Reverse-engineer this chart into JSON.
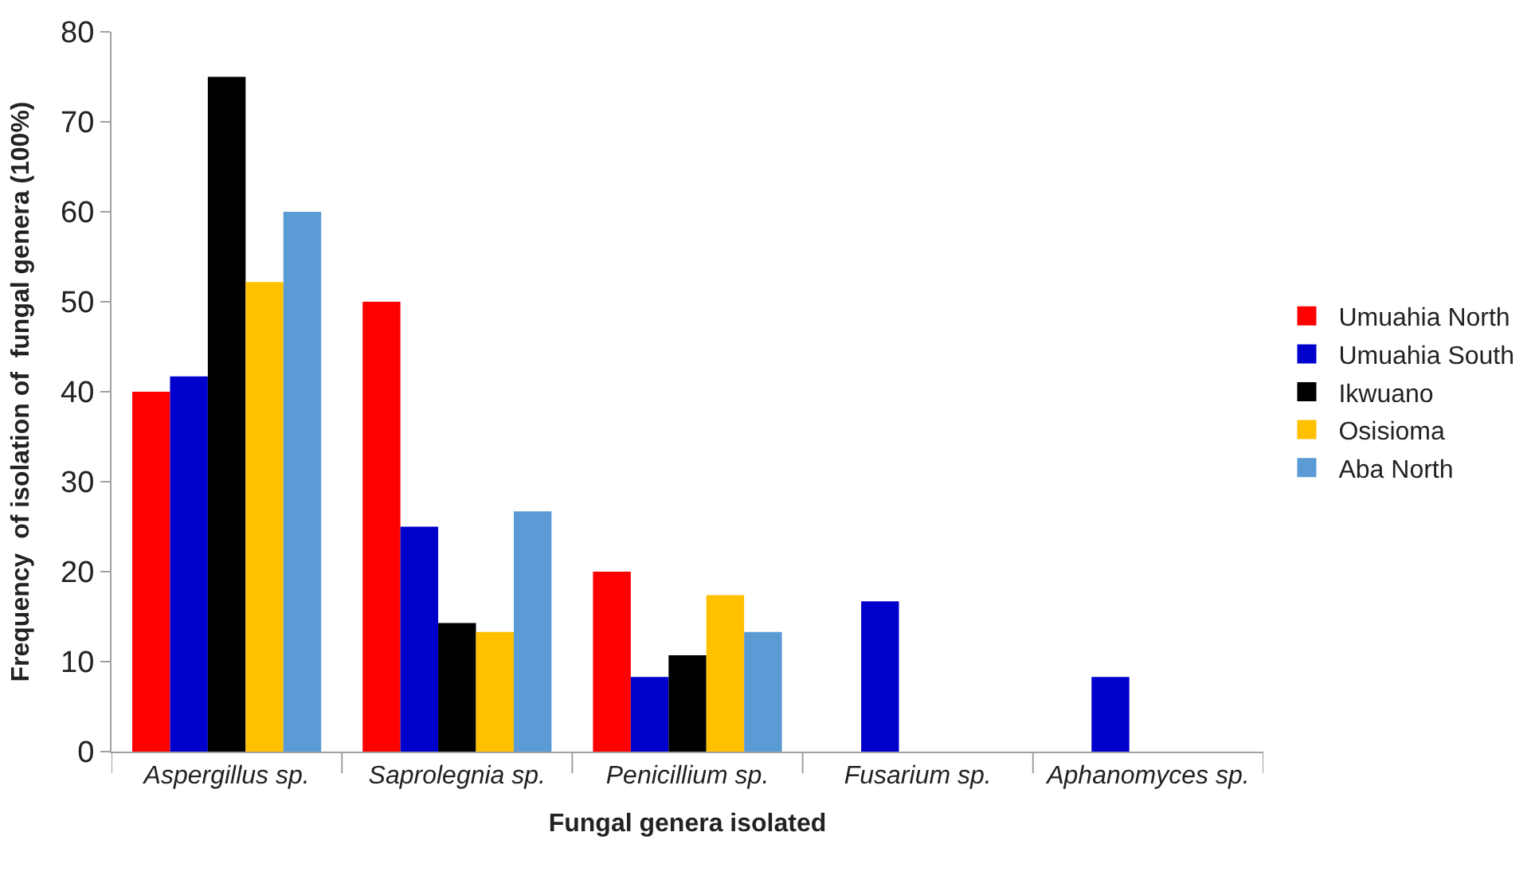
{
  "chart_data": {
    "type": "bar",
    "xlabel": "Fungal genera isolated",
    "ylabel": "Frequency  of isolation of  fungal genera (100%)",
    "categories": [
      "Aspergillus sp.",
      "Saprolegnia sp.",
      "Penicillium sp.",
      "Fusarium sp.",
      "Aphanomyces sp."
    ],
    "series": [
      {
        "name": "Umuahia North",
        "color": "#ff0000",
        "values": [
          40,
          50,
          20,
          0,
          0
        ]
      },
      {
        "name": "Umuahia South",
        "color": "#0000cc",
        "values": [
          41.7,
          25,
          8.3,
          16.7,
          8.3
        ]
      },
      {
        "name": "Ikwuano",
        "color": "#000000",
        "values": [
          75,
          14.3,
          10.7,
          0,
          0
        ]
      },
      {
        "name": "Osisioma",
        "color": "#ffc000",
        "values": [
          52.2,
          13.3,
          17.4,
          0,
          0
        ]
      },
      {
        "name": "Aba North",
        "color": "#5b9bd5",
        "values": [
          60,
          26.7,
          13.3,
          0,
          0
        ]
      }
    ],
    "ylim": [
      0,
      80
    ],
    "yticks": [
      0,
      10,
      20,
      30,
      40,
      50,
      60,
      70,
      80
    ],
    "legend": "right"
  }
}
